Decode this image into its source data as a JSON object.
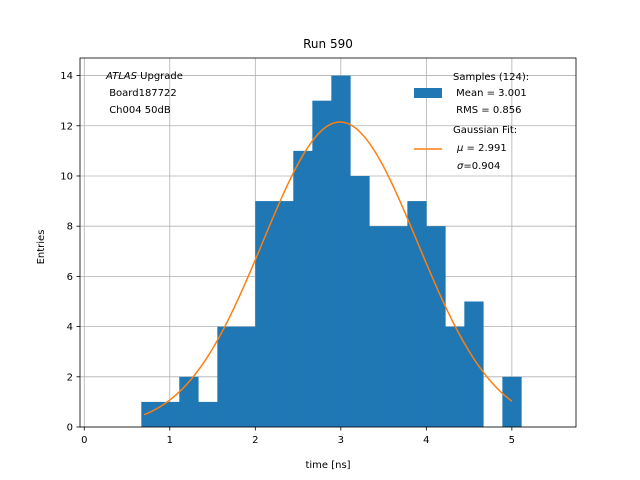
{
  "chart_data": {
    "type": "bar",
    "title": "Run 590",
    "xlabel": "time [ns]",
    "ylabel": "Entries",
    "xlim": [
      -0.05,
      5.75
    ],
    "ylim": [
      0,
      14.7
    ],
    "xticks": [
      0,
      1,
      2,
      3,
      4,
      5
    ],
    "yticks": [
      0,
      2,
      4,
      6,
      8,
      10,
      12,
      14
    ],
    "grid": true,
    "bin_width": 0.222,
    "histogram": {
      "name": "Samples (124):",
      "color": "#1f77b4",
      "bin_starts": [
        0.667,
        0.889,
        1.111,
        1.333,
        1.556,
        1.778,
        2.0,
        2.222,
        2.444,
        2.667,
        2.889,
        3.111,
        3.333,
        3.556,
        3.778,
        4.0,
        4.222,
        4.444,
        4.667,
        4.889
      ],
      "counts": [
        1,
        1,
        2,
        1,
        4,
        4,
        9,
        9,
        11,
        13,
        14,
        10,
        8,
        8,
        9,
        8,
        4,
        5,
        0,
        2
      ]
    },
    "fit": {
      "name": "Gaussian Fit:",
      "color": "#ff7f0e",
      "type": "gaussian",
      "amplitude": 12.15,
      "mu": 2.991,
      "sigma": 0.904,
      "x_range": [
        0.7,
        5.0
      ]
    },
    "legend": {
      "placement": "top-right",
      "samples_title": "Samples (124):",
      "samples_mean": " Mean = 3.001",
      "samples_rms": " RMS = 0.856",
      "fit_title": "Gaussian Fit:",
      "fit_mu_symbol": "μ",
      "fit_mu_value": " = 2.991",
      "fit_sigma_symbol": "σ",
      "fit_sigma_value": "=0.904"
    },
    "annotation": {
      "placement": "top-left",
      "experiment": "ATLAS",
      "experiment_suffix": " Upgrade",
      "board": "Board187722",
      "channel": "Ch004 50dB"
    },
    "colors": {
      "grid": "#b0b0b0",
      "axis": "#000000"
    }
  }
}
